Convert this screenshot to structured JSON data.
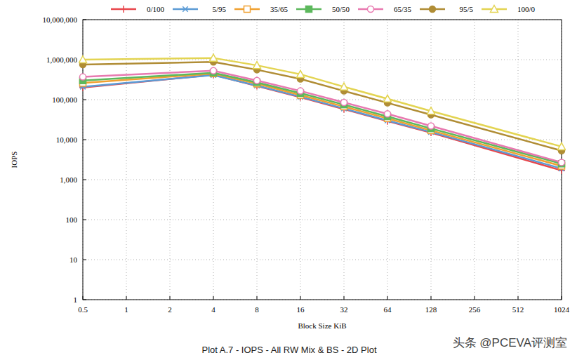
{
  "chart_data": {
    "type": "line",
    "title": "Plot A.7 - IOPS - All RW Mix & BS - 2D Plot",
    "x_label": "Block Size KiB",
    "y_label": "IOPS",
    "annotation": "头条 @PCEVA评测室",
    "log": true,
    "grid": true,
    "legend": "top",
    "x": [
      0.5,
      4,
      8,
      16,
      32,
      64,
      128,
      1024
    ],
    "xlim": [
      0.5,
      1024
    ],
    "xticks": [
      0.5,
      1,
      2,
      4,
      8,
      16,
      32,
      64,
      128,
      256,
      512,
      1024
    ],
    "ylim": [
      1,
      10000000
    ],
    "yticks": [
      1,
      10,
      100,
      {
        "value": 1000,
        "label": "1,000"
      },
      {
        "value": 10000,
        "label": "10,000"
      },
      {
        "value": 100000,
        "label": "100,000"
      },
      {
        "value": 1000000,
        "label": "1,000,000"
      },
      {
        "value": 10000000,
        "label": "10,000,000"
      }
    ],
    "series": [
      {
        "name": "0/100",
        "color": "#e8474c",
        "marker": "plus",
        "values": [
          200000,
          420000,
          220000,
          115000,
          58000,
          29000,
          15000,
          1700
        ]
      },
      {
        "name": "5/95",
        "color": "#5b9bd5",
        "marker": "star",
        "values": [
          210000,
          410000,
          225000,
          118000,
          60000,
          30000,
          15500,
          1900
        ]
      },
      {
        "name": "35/65",
        "color": "#f0a030",
        "marker": "square-open",
        "values": [
          260000,
          450000,
          250000,
          130000,
          67000,
          34000,
          17000,
          2200
        ]
      },
      {
        "name": "50/50",
        "color": "#5cb85c",
        "marker": "square",
        "values": [
          300000,
          470000,
          270000,
          145000,
          75000,
          38000,
          19000,
          2500
        ]
      },
      {
        "name": "65/35",
        "color": "#e879b0",
        "marker": "circle-open",
        "values": [
          370000,
          530000,
          300000,
          165000,
          85000,
          44000,
          22000,
          2700
        ]
      },
      {
        "name": "95/5",
        "color": "#b08d35",
        "marker": "circle",
        "values": [
          750000,
          880000,
          560000,
          330000,
          165000,
          83000,
          42000,
          5300
        ]
      },
      {
        "name": "100/0",
        "color": "#e3d452",
        "marker": "triangle-open",
        "values": [
          1000000,
          1100000,
          720000,
          430000,
          210000,
          105000,
          52000,
          6700
        ]
      }
    ]
  }
}
